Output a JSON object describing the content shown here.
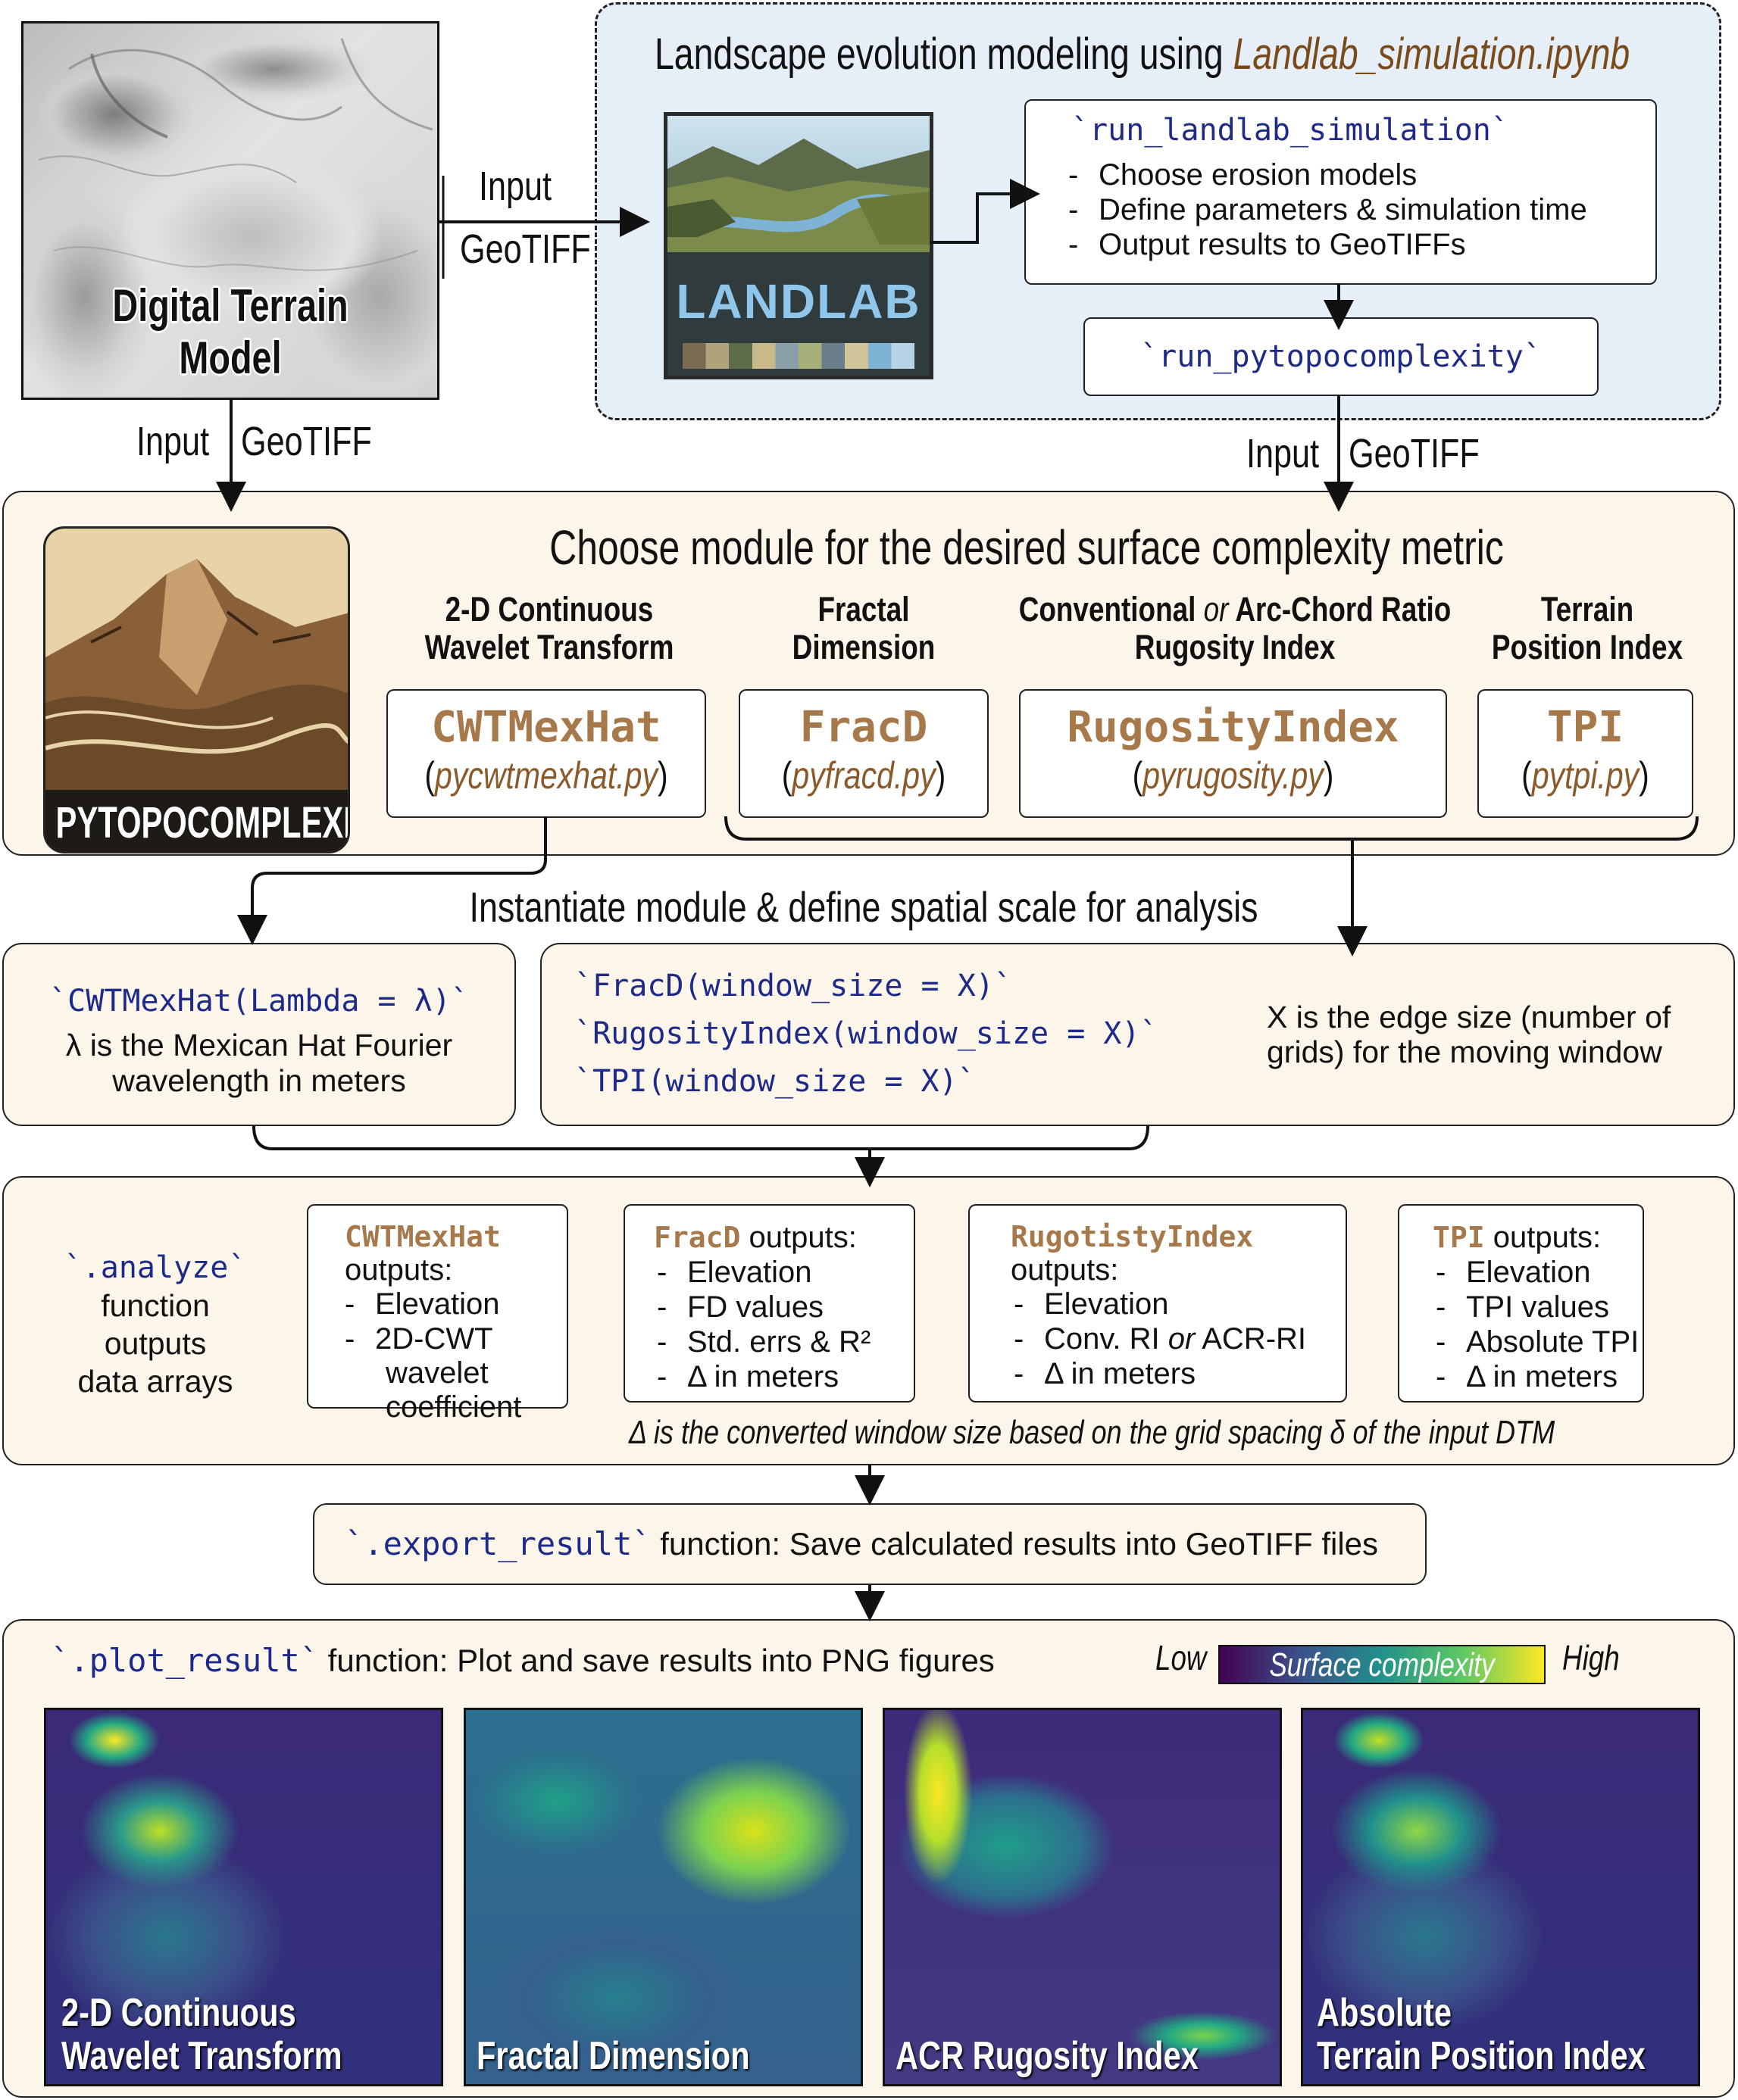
{
  "dtm": {
    "label": "Digital Terrain Model"
  },
  "edge_labels": {
    "dtm_to_landlab_top": "Input",
    "dtm_to_landlab_bottom": "GeoTIFF",
    "dtm_down_input": "Input",
    "dtm_down_geotiff": "GeoTIFF",
    "landlab_down_input": "Input",
    "landlab_down_geotiff": "GeoTIFF"
  },
  "landlab": {
    "title_prefix": "Landscape evolution modeling using ",
    "title_file": "Landlab_simulation.ipynb",
    "logo_text": "LANDLAB",
    "run_sim": {
      "code": "`run_landlab_simulation`",
      "items": [
        "Choose erosion models",
        "Define parameters & simulation time",
        "Output results to GeoTIFFs"
      ]
    },
    "run_pytopo": "`run_pytopocomplexity`"
  },
  "modules": {
    "logo_text": "PYTOPOCOMPLEXITY",
    "title": "Choose module for the desired surface complexity metric",
    "cwt": {
      "heading_1": "2-D Continuous",
      "heading_2": "Wavelet Transform",
      "name": "CWTMexHat",
      "file": "pycwtmexhat.py"
    },
    "fracd": {
      "heading_1": "Fractal",
      "heading_2": "Dimension",
      "name": "FracD",
      "file": "pyfracd.py"
    },
    "rugosity": {
      "heading_1a": "Conventional ",
      "heading_1_or": "or",
      "heading_1b": " Arc-Chord Ratio",
      "heading_2": "Rugosity Index",
      "name": "RugosityIndex",
      "file": "pyrugosity.py"
    },
    "tpi": {
      "heading_1": "Terrain",
      "heading_2": "Position Index",
      "name": "TPI",
      "file": "pytpi.py"
    }
  },
  "instantiate": {
    "label": "Instantiate module & define spatial scale for analysis",
    "cwt_code": "`CWTMexHat(Lambda = λ)`",
    "cwt_desc_1": "λ is the Mexican Hat Fourier",
    "cwt_desc_2": "wavelength in meters",
    "fracd_code": "`FracD(window_size = X)`",
    "rugosity_code": "`RugosityIndex(window_size = X)`",
    "tpi_code": "`TPI(window_size = X)`",
    "x_desc_1": "X is the edge size (number of",
    "x_desc_2": "grids) for the moving window"
  },
  "analyze": {
    "code": "`.analyze`",
    "desc": [
      "function",
      "outputs",
      "data arrays"
    ],
    "cwt": {
      "name": "CWTMexHat",
      "suffix": "outputs:",
      "items": [
        "Elevation",
        "2D-CWT",
        "wavelet",
        "coefficient"
      ]
    },
    "fracd": {
      "name": "FracD",
      "suffix": " outputs:",
      "items": [
        "Elevation",
        "FD values",
        "Std. errs & R²",
        "Δ in meters"
      ]
    },
    "rugosity": {
      "name": "RugotistyIndex",
      "suffix": "outputs:",
      "item1": "Elevation",
      "item2a": "Conv. RI ",
      "item2_or": "or",
      "item2b": " ACR-RI",
      "item3": "Δ in meters"
    },
    "tpi": {
      "name": "TPI",
      "suffix": " outputs:",
      "items": [
        "Elevation",
        "TPI values",
        "Absolute TPI",
        "Δ in meters"
      ]
    },
    "footnote": "Δ is the converted window size based on the grid spacing δ of the input DTM"
  },
  "export": {
    "code": "`.export_result`",
    "desc": " function: Save calculated results into GeoTIFF files"
  },
  "plot": {
    "code": "`.plot_result`",
    "desc": " function: Plot and save results into PNG figures",
    "colorbar_low": "Low",
    "colorbar_title": "Surface complexity",
    "colorbar_high": "High",
    "images": [
      {
        "label_1": "2-D Continuous",
        "label_2": "Wavelet Transform"
      },
      {
        "label_1": "",
        "label_2": "Fractal Dimension"
      },
      {
        "label_1": "",
        "label_2": "ACR Rugosity Index"
      },
      {
        "label_1": "Absolute",
        "label_2": "Terrain Position Index"
      }
    ]
  },
  "colors": {
    "code_blue": "#1e2a8a",
    "module_brown": "#a6784a",
    "panel_bg": "#fbf5ea",
    "landlab_bg": "#e6eef8"
  }
}
